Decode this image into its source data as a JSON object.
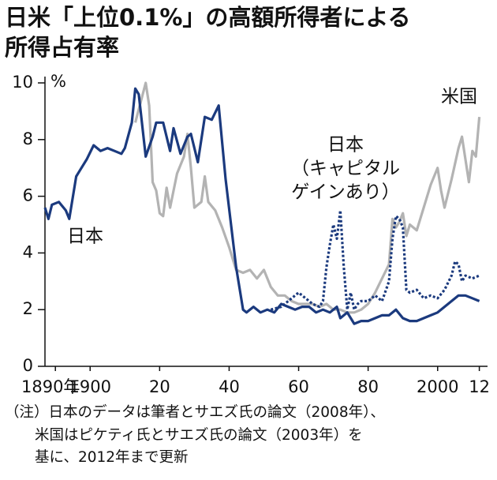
{
  "chart_data": {
    "type": "line",
    "title": [
      "日米「上位0.1%」の高額所得者による",
      "所得占有率"
    ],
    "ylabel": "%",
    "xlim": [
      1887,
      2013
    ],
    "ylim": [
      0,
      10
    ],
    "yticks": [
      0,
      2,
      4,
      6,
      8,
      10
    ],
    "xticks": [
      {
        "value": 1890,
        "label": "1890年"
      },
      1900,
      {
        "value": 1920,
        "label": "20"
      },
      {
        "value": 1940,
        "label": "40"
      },
      {
        "value": 1960,
        "label": "60"
      },
      {
        "value": 1980,
        "label": "80"
      },
      2000,
      {
        "value": 2012,
        "label": "12"
      }
    ],
    "series": [
      {
        "name": "日本",
        "color": "#1b3a7e",
        "dashed": false,
        "x": [
          1887,
          1888,
          1889,
          1891,
          1893,
          1894,
          1896,
          1897,
          1899,
          1901,
          1903,
          1905,
          1907,
          1909,
          1910,
          1912,
          1913,
          1914,
          1916,
          1918,
          1919,
          1921,
          1923,
          1924,
          1926,
          1928,
          1929,
          1931,
          1933,
          1935,
          1937,
          1939,
          1942,
          1944,
          1945,
          1947,
          1949,
          1951,
          1953,
          1955,
          1957,
          1959,
          1961,
          1963,
          1965,
          1967,
          1969,
          1971,
          1972,
          1974,
          1976,
          1978,
          1980,
          1982,
          1984,
          1986,
          1988,
          1990,
          1992,
          1994,
          1996,
          1998,
          2000,
          2002,
          2004,
          2006,
          2008,
          2010,
          2012
        ],
        "values": [
          5.6,
          5.2,
          5.7,
          5.8,
          5.5,
          5.2,
          6.7,
          6.9,
          7.3,
          7.8,
          7.6,
          7.7,
          7.6,
          7.5,
          7.7,
          8.6,
          9.8,
          9.6,
          7.4,
          8.1,
          8.6,
          8.6,
          7.6,
          8.4,
          7.5,
          8.1,
          8.2,
          7.2,
          8.8,
          8.7,
          9.2,
          6.6,
          3.5,
          2.0,
          1.9,
          2.1,
          1.9,
          2.0,
          1.9,
          2.2,
          2.1,
          2.0,
          2.1,
          2.1,
          1.9,
          2.0,
          1.9,
          2.1,
          1.7,
          1.9,
          1.5,
          1.6,
          1.6,
          1.7,
          1.8,
          1.8,
          2.0,
          1.7,
          1.6,
          1.6,
          1.7,
          1.8,
          1.9,
          2.1,
          2.3,
          2.5,
          2.5,
          2.4,
          2.3
        ]
      },
      {
        "name": "米国",
        "color": "#b3b3b3",
        "dashed": false,
        "x": [
          1913,
          1916,
          1917,
          1918,
          1919,
          1920,
          1921,
          1922,
          1923,
          1925,
          1927,
          1928,
          1929,
          1930,
          1932,
          1933,
          1934,
          1936,
          1938,
          1940,
          1942,
          1944,
          1946,
          1948,
          1950,
          1952,
          1954,
          1956,
          1958,
          1960,
          1962,
          1964,
          1966,
          1968,
          1970,
          1972,
          1974,
          1976,
          1978,
          1980,
          1982,
          1984,
          1986,
          1987,
          1988,
          1989,
          1990,
          1991,
          1992,
          1994,
          1996,
          1998,
          2000,
          2001,
          2002,
          2004,
          2006,
          2007,
          2008,
          2009,
          2010,
          2011,
          2012
        ],
        "values": [
          8.6,
          10.0,
          9.2,
          6.5,
          6.2,
          5.4,
          5.3,
          6.3,
          5.6,
          6.8,
          7.4,
          8.2,
          7.0,
          5.6,
          5.8,
          6.7,
          5.8,
          5.5,
          4.9,
          4.2,
          3.4,
          3.3,
          3.4,
          3.1,
          3.4,
          2.8,
          2.5,
          2.5,
          2.3,
          2.2,
          2.2,
          2.2,
          2.1,
          2.2,
          2.0,
          2.0,
          1.9,
          1.9,
          2.0,
          2.2,
          2.6,
          3.1,
          3.6,
          5.2,
          4.9,
          5.1,
          5.4,
          4.6,
          5.0,
          4.8,
          5.6,
          6.4,
          7.0,
          6.2,
          5.6,
          6.6,
          7.7,
          8.1,
          7.3,
          6.5,
          7.6,
          7.4,
          8.8
        ]
      },
      {
        "name": [
          "日本",
          "（キャピタル",
          "ゲインあり）"
        ],
        "color": "#1b3a7e",
        "dashed": true,
        "x": [
          1952,
          1955,
          1958,
          1960,
          1962,
          1964,
          1966,
          1967,
          1968,
          1969,
          1970,
          1971,
          1972,
          1973,
          1974,
          1975,
          1976,
          1977,
          1978,
          1980,
          1982,
          1984,
          1986,
          1987,
          1988,
          1989,
          1990,
          1991,
          1992,
          1994,
          1996,
          1998,
          2000,
          2002,
          2004,
          2005,
          2006,
          2007,
          2008,
          2010,
          2012
        ],
        "values": [
          2.0,
          2.1,
          2.4,
          2.6,
          2.4,
          2.2,
          2.1,
          2.3,
          3.5,
          4.3,
          5.0,
          4.5,
          5.5,
          3.5,
          2.0,
          2.6,
          2.0,
          2.2,
          2.3,
          2.3,
          2.5,
          2.3,
          3.0,
          4.5,
          5.3,
          5.2,
          4.9,
          2.7,
          2.6,
          2.7,
          2.4,
          2.5,
          2.4,
          2.7,
          3.2,
          3.7,
          3.6,
          3.0,
          3.2,
          3.1,
          3.2
        ]
      }
    ],
    "note": [
      "（注）日本のデータは筆者とサエズ氏の論文（2008年）、",
      "米国はピケティ氏とサエズ氏の論文（2003年）を",
      "基に、2012年まで更新"
    ]
  }
}
